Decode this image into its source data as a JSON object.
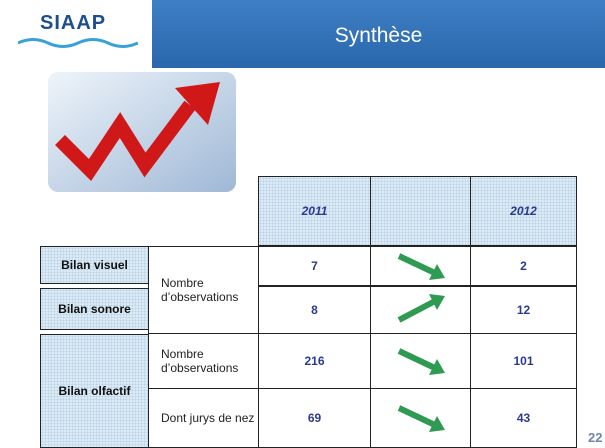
{
  "header": {
    "logo": "SIAAP",
    "title": "Synthèse"
  },
  "table": {
    "years": [
      "2011",
      "2012"
    ],
    "groups": [
      "Bilan visuel",
      "Bilan sonore",
      "Bilan olfactif"
    ],
    "measures": [
      "Nombre d’observations",
      "Nombre d’observations",
      "Dont jurys de nez"
    ],
    "rows": [
      [
        7,
        2
      ],
      [
        8,
        12
      ],
      [
        216,
        101
      ],
      [
        69,
        43
      ]
    ]
  },
  "page_number": "22"
}
